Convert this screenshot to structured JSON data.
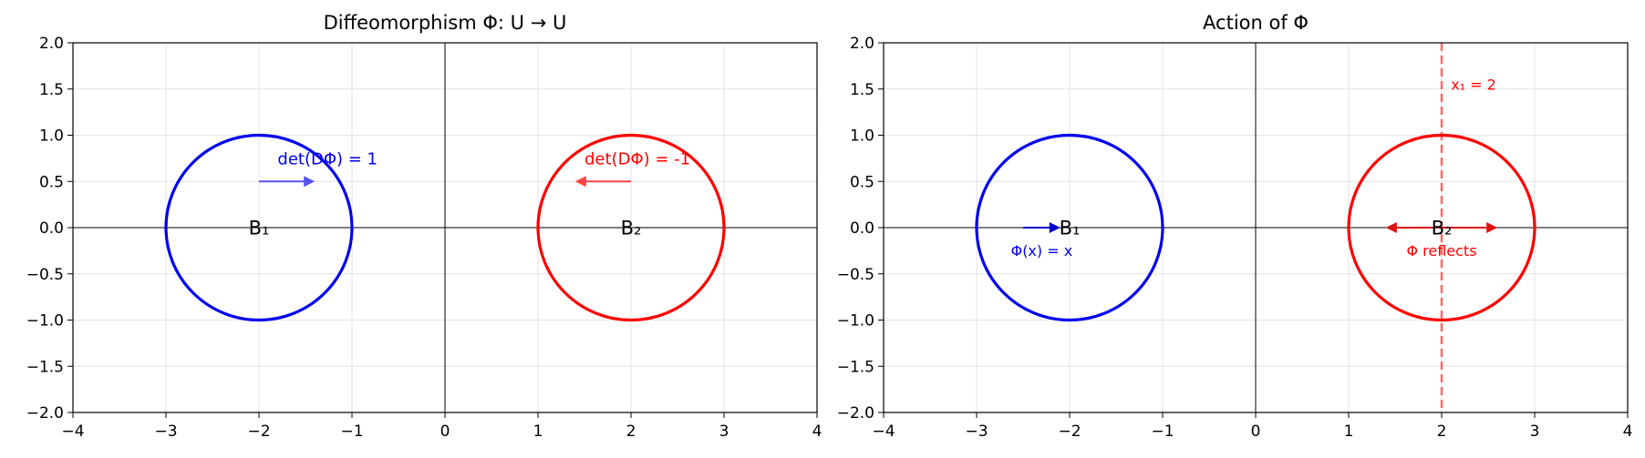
{
  "chart_data": [
    {
      "type": "line",
      "title": "Diffeomorphism Φ: U → U",
      "xlim": [
        -4,
        4
      ],
      "ylim": [
        -2,
        2
      ],
      "xticks": [
        -4,
        -3,
        -2,
        -1,
        0,
        1,
        2,
        3,
        4
      ],
      "yticks": [
        -2.0,
        -1.5,
        -1.0,
        -0.5,
        0.0,
        0.5,
        1.0,
        1.5,
        2.0
      ],
      "xtick_labels": [
        "−4",
        "−3",
        "−2",
        "−1",
        "0",
        "1",
        "2",
        "3",
        "4"
      ],
      "ytick_labels": [
        "−2.0",
        "−1.5",
        "−1.0",
        "−0.5",
        "0.0",
        "0.5",
        "1.0",
        "1.5",
        "2.0"
      ],
      "grid": true,
      "circles": [
        {
          "cx": -2,
          "cy": 0,
          "r": 1,
          "color": "#0000ee"
        },
        {
          "cx": 2,
          "cy": 0,
          "r": 1,
          "color": "#ff0000"
        }
      ],
      "arrows": [
        {
          "x0": -2,
          "y0": 0.5,
          "x1": -1.4,
          "y1": 0.5,
          "color": "#5555ee"
        },
        {
          "x0": 2,
          "y0": 0.5,
          "x1": 1.4,
          "y1": 0.5,
          "color": "#ff4444"
        }
      ],
      "labels": [
        {
          "text": "B₁",
          "x": -2,
          "y": 0,
          "color": "#000000",
          "size": 21,
          "anchor": "middle"
        },
        {
          "text": "B₂",
          "x": 2,
          "y": 0,
          "color": "#000000",
          "size": 21,
          "anchor": "middle"
        },
        {
          "text": "det(DΦ) = 1",
          "x": -1.8,
          "y": 0.75,
          "color": "#0000ee",
          "size": 18,
          "anchor": "start"
        },
        {
          "text": "det(DΦ) = -1",
          "x": 1.5,
          "y": 0.75,
          "color": "#ff0000",
          "size": 18,
          "anchor": "start"
        }
      ]
    },
    {
      "type": "line",
      "title": "Action of Φ",
      "xlim": [
        -4,
        4
      ],
      "ylim": [
        -2,
        2
      ],
      "xticks": [
        -4,
        -3,
        -2,
        -1,
        0,
        1,
        2,
        3,
        4
      ],
      "yticks": [
        -2.0,
        -1.5,
        -1.0,
        -0.5,
        0.0,
        0.5,
        1.0,
        1.5,
        2.0
      ],
      "xtick_labels": [
        "−4",
        "−3",
        "−2",
        "−1",
        "0",
        "1",
        "2",
        "3",
        "4"
      ],
      "ytick_labels": [
        "−2.0",
        "−1.5",
        "−1.0",
        "−0.5",
        "0.0",
        "0.5",
        "1.0",
        "1.5",
        "2.0"
      ],
      "grid": true,
      "circles": [
        {
          "cx": -2,
          "cy": 0,
          "r": 1,
          "color": "#0000ee"
        },
        {
          "cx": 2,
          "cy": 0,
          "r": 1,
          "color": "#ff0000"
        }
      ],
      "vlines": [
        {
          "x": 2,
          "color": "#ff6666",
          "dashed": true
        }
      ],
      "arrows": [
        {
          "x0": -2.5,
          "y0": 0,
          "x1": -2.1,
          "y1": 0,
          "color": "#0000cc"
        },
        {
          "x0": 2,
          "y0": 0,
          "x1": 2.6,
          "y1": 0,
          "color": "#dd1111"
        },
        {
          "x0": 2,
          "y0": 0,
          "x1": 1.4,
          "y1": 0,
          "color": "#dd1111"
        }
      ],
      "labels": [
        {
          "text": "B₁",
          "x": -2,
          "y": 0,
          "color": "#000000",
          "size": 21,
          "anchor": "middle"
        },
        {
          "text": "B₂",
          "x": 2,
          "y": 0,
          "color": "#000000",
          "size": 21,
          "anchor": "middle"
        },
        {
          "text": "Φ(x) = x",
          "x": -2.3,
          "y": -0.25,
          "color": "#0000ee",
          "size": 16,
          "anchor": "middle"
        },
        {
          "text": "Φ reflects",
          "x": 2,
          "y": -0.25,
          "color": "#ff0000",
          "size": 16,
          "anchor": "middle"
        },
        {
          "text": "x₁ = 2",
          "x": 2.1,
          "y": 1.55,
          "color": "#ff0000",
          "size": 16,
          "anchor": "start"
        }
      ]
    }
  ]
}
